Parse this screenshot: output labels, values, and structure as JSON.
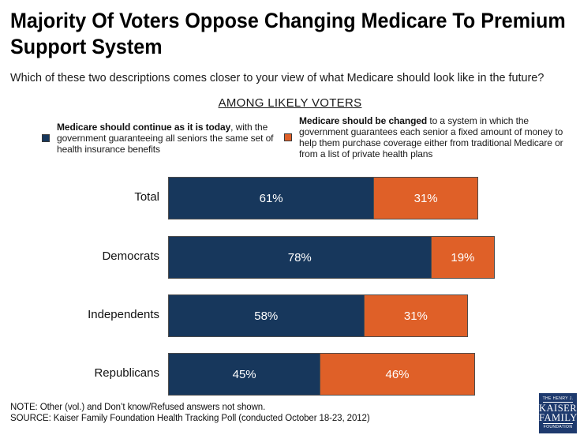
{
  "header": {
    "title_line1": "Majority Of Voters Oppose Changing Medicare To Premium",
    "title_line2": "Support System",
    "subtitle": "Which of these two descriptions comes closer to your view of what Medicare should look like in the future?",
    "section_heading": "AMONG LIKELY VOTERS"
  },
  "legend": {
    "items": [
      {
        "bold": "Medicare should continue as it is today",
        "rest": ", with the government guaranteeing all seniors the same set of health insurance benefits"
      },
      {
        "bold": "Medicare should be changed",
        "rest": " to a system in which the government guarantees each senior a fixed amount of money to help them purchase coverage either from traditional Medicare or from a list of private health plans"
      }
    ]
  },
  "chart_data": {
    "type": "bar",
    "orientation": "horizontal",
    "stacked": true,
    "title": "AMONG LIKELY VOTERS",
    "categories": [
      "Total",
      "Democrats",
      "Independents",
      "Republicans"
    ],
    "series": [
      {
        "name": "Medicare should continue as it is today",
        "color": "#17375C",
        "values": [
          61,
          78,
          58,
          45
        ]
      },
      {
        "name": "Medicare should be changed",
        "color": "#DF6028",
        "values": [
          31,
          19,
          31,
          46
        ]
      }
    ],
    "value_suffix": "%",
    "xlim": [
      0,
      100
    ],
    "grid": false,
    "legend_position": "top"
  },
  "footer": {
    "note": "NOTE: Other (vol.) and Don’t know/Refused answers not shown.",
    "source": "SOURCE: Kaiser Family Foundation Health Tracking Poll (conducted October 18-23, 2012)"
  },
  "logo": {
    "line1": "THE HENRY J.",
    "line2": "KAISER",
    "line3": "FAMILY",
    "line4": "FOUNDATION",
    "bg_color": "#1E3A6E"
  }
}
